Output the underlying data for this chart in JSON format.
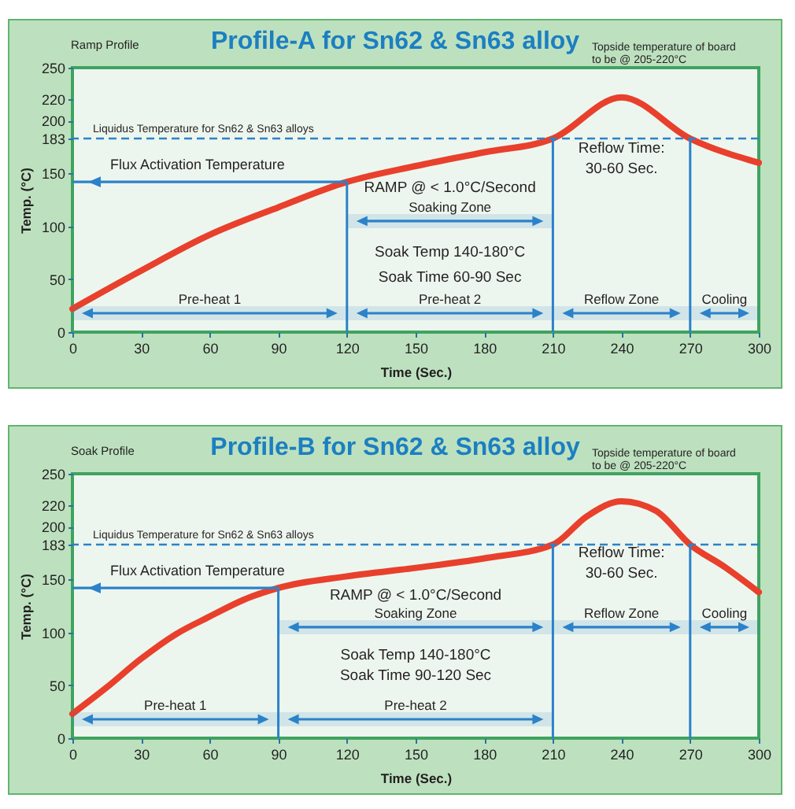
{
  "chart_data": [
    {
      "type": "line",
      "title": "Profile-A for Sn62 & Sn63 alloy",
      "subtitle": "Ramp Profile",
      "xlabel": "Time (Sec.)",
      "ylabel": "Temp. (°C)",
      "x": [
        0,
        30,
        60,
        90,
        120,
        150,
        180,
        210,
        240,
        270,
        300
      ],
      "values": [
        22,
        58,
        92,
        118,
        142,
        157,
        170,
        183,
        222,
        183,
        160
      ],
      "color": "#e8402c",
      "xlim": [
        0,
        300
      ],
      "xticks": [
        0,
        30,
        60,
        90,
        120,
        150,
        180,
        210,
        240,
        270,
        300
      ],
      "ylim": [
        0,
        250
      ],
      "yticks": [
        0,
        50,
        100,
        150,
        183,
        200,
        220,
        250
      ],
      "grid": false,
      "ref_lines": [
        {
          "axis": "y",
          "value": 183,
          "label": "Liquidus Temperature for Sn62 & Sn63 alloys",
          "color": "#2b82c9",
          "line_style": "dashed"
        },
        {
          "axis": "y",
          "value": 142,
          "label": "Flux Activation Temperature",
          "color": "#2b82c9",
          "line_style": "solid"
        },
        {
          "axis": "x",
          "value": 120,
          "color": "#2b82c9"
        },
        {
          "axis": "x",
          "value": 210,
          "color": "#2b82c9"
        },
        {
          "axis": "x",
          "value": 270,
          "color": "#2b82c9"
        }
      ],
      "bands": [
        {
          "axis": "x",
          "from": 0,
          "to": 120,
          "label": "Pre-heat 1",
          "color": "#2b82c9"
        },
        {
          "axis": "x",
          "from": 120,
          "to": 210,
          "label": "Pre-heat 2",
          "color": "#2b82c9"
        },
        {
          "axis": "x",
          "from": 210,
          "to": 270,
          "label": "Reflow Zone",
          "color": "#2b82c9"
        },
        {
          "axis": "x",
          "from": 270,
          "to": 300,
          "label": "Cooling",
          "color": "#2b82c9"
        },
        {
          "axis": "x",
          "from": 120,
          "to": 210,
          "label": "Soaking Zone",
          "color": "#2b82c9"
        }
      ],
      "annotations": [
        "RAMP @ < 1.0°C/Second",
        "Soak Temp 140-180°C",
        "Soak Time 60-90 Sec",
        "Reflow Time:",
        "30-60 Sec.",
        "Topside temperature of board to be @ 205-220°C"
      ]
    },
    {
      "type": "line",
      "title": "Profile-B for Sn62 & Sn63 alloy",
      "subtitle": "Soak Profile",
      "xlabel": "Time (Sec.)",
      "ylabel": "Temp. (°C)",
      "x": [
        0,
        15,
        30,
        45,
        60,
        75,
        90,
        120,
        150,
        180,
        210,
        225,
        240,
        255,
        270,
        285,
        300
      ],
      "values": [
        23,
        48,
        75,
        98,
        115,
        131,
        142,
        153,
        161,
        170,
        183,
        210,
        224,
        215,
        183,
        162,
        138
      ],
      "color": "#e8402c",
      "xlim": [
        0,
        300
      ],
      "xticks": [
        0,
        30,
        60,
        90,
        120,
        150,
        180,
        210,
        240,
        270,
        300
      ],
      "ylim": [
        0,
        250
      ],
      "yticks": [
        0,
        50,
        100,
        150,
        183,
        200,
        220,
        250
      ],
      "grid": false,
      "ref_lines": [
        {
          "axis": "y",
          "value": 183,
          "label": "Liquidus Temperature for Sn62 & Sn63 alloys",
          "color": "#2b82c9",
          "line_style": "dashed"
        },
        {
          "axis": "y",
          "value": 142,
          "label": "Flux Activation Temperature",
          "color": "#2b82c9",
          "line_style": "solid"
        },
        {
          "axis": "x",
          "value": 90,
          "color": "#2b82c9"
        },
        {
          "axis": "x",
          "value": 210,
          "color": "#2b82c9"
        },
        {
          "axis": "x",
          "value": 270,
          "color": "#2b82c9"
        }
      ],
      "bands": [
        {
          "axis": "x",
          "from": 0,
          "to": 90,
          "label": "Pre-heat 1",
          "color": "#2b82c9"
        },
        {
          "axis": "x",
          "from": 90,
          "to": 210,
          "label": "Pre-heat 2",
          "color": "#2b82c9"
        },
        {
          "axis": "x",
          "from": 90,
          "to": 210,
          "label": "Soaking Zone",
          "color": "#2b82c9"
        },
        {
          "axis": "x",
          "from": 210,
          "to": 270,
          "label": "Reflow Zone",
          "color": "#2b82c9"
        },
        {
          "axis": "x",
          "from": 270,
          "to": 300,
          "label": "Cooling",
          "color": "#2b82c9"
        }
      ],
      "annotations": [
        "RAMP @ < 1.0°C/Second",
        "Soak Temp 140-180°C",
        "Soak Time 90-120 Sec",
        "Reflow Time:",
        "30-60 Sec.",
        "Topside temperature of board to be @ 205-220°C"
      ]
    }
  ]
}
